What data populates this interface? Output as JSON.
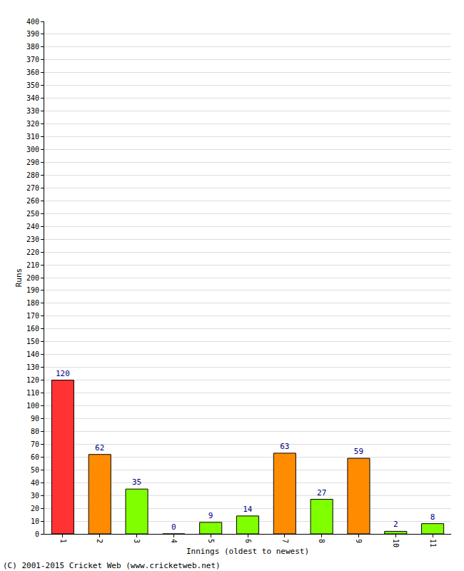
{
  "chart_data": {
    "type": "bar",
    "x_label": "Innings (oldest to newest)",
    "y_label": "Runs",
    "categories": [
      "1",
      "2",
      "3",
      "4",
      "5",
      "6",
      "7",
      "8",
      "9",
      "10",
      "11"
    ],
    "values": [
      120,
      62,
      35,
      0,
      9,
      14,
      63,
      27,
      59,
      2,
      8
    ],
    "colors": [
      "#ff3333",
      "#ff8c00",
      "#80ff00",
      "#80ff00",
      "#80ff00",
      "#80ff00",
      "#ff8c00",
      "#80ff00",
      "#ff8c00",
      "#80ff00",
      "#80ff00"
    ],
    "ylim": [
      0,
      400
    ],
    "yticks": [
      0,
      10,
      20,
      30,
      40,
      50,
      60,
      70,
      80,
      90,
      100,
      110,
      120,
      130,
      140,
      150,
      160,
      170,
      180,
      190,
      200,
      210,
      220,
      230,
      240,
      250,
      260,
      270,
      280,
      290,
      300,
      310,
      320,
      330,
      340,
      350,
      360,
      370,
      380,
      390,
      400
    ],
    "grid": true,
    "data_labels": true,
    "annotations": [
      "(C) 2001-2015 Cricket Web (www.cricketweb.net)"
    ]
  }
}
